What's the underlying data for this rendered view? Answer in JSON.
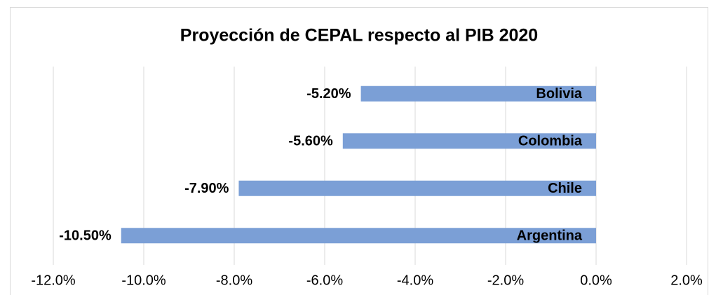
{
  "chart_data": {
    "type": "bar",
    "orientation": "horizontal",
    "title": "Proyección de CEPAL respecto al PIB 2020",
    "categories": [
      "Bolivia",
      "Colombia",
      "Chile",
      "Argentina"
    ],
    "values": [
      -5.2,
      -5.6,
      -7.9,
      -10.5
    ],
    "value_labels": [
      "-5.20%",
      "-5.60%",
      "-7.90%",
      "-10.50%"
    ],
    "color": "#7b9fd6",
    "xlim": [
      -12,
      2
    ],
    "xticks": [
      {
        "value": -12,
        "label": "-12.0%"
      },
      {
        "value": -10,
        "label": "-10.0%"
      },
      {
        "value": -8,
        "label": "-8.0%"
      },
      {
        "value": -6,
        "label": "-6.0%"
      },
      {
        "value": -4,
        "label": "-4.0%"
      },
      {
        "value": -2,
        "label": "-2.0%"
      },
      {
        "value": 0,
        "label": "0.0%"
      },
      {
        "value": 2,
        "label": "2.0%"
      }
    ],
    "grid": true
  }
}
